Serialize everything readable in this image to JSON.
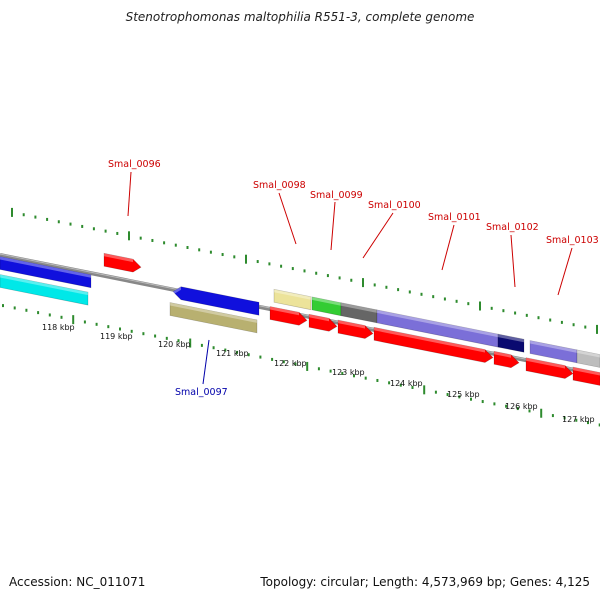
{
  "title": "Stenotrophomonas maltophilia R551-3, complete genome",
  "footer": {
    "accession": "Accession: NC_011071",
    "summary": "Topology: circular; Length: 4,573,969 bp; Genes: 4,125"
  },
  "colors": {
    "backbone": "#888888",
    "ticks": "#2e8b2e",
    "gene_label_top": "#cc0000",
    "gene_label_bottom": "#0000aa"
  },
  "scale_labels": [
    "118 kbp",
    "119 kbp",
    "120 kbp",
    "121 kbp",
    "122 kbp",
    "123 kbp",
    "124 kbp",
    "125 kbp",
    "126 kbp",
    "127 kbp"
  ],
  "gene_labels": [
    {
      "text": "Smal_0096",
      "color": "#cc0000"
    },
    {
      "text": "Smal_0097",
      "color": "#0000aa"
    },
    {
      "text": "Smal_0098",
      "color": "#cc0000"
    },
    {
      "text": "Smal_0099",
      "color": "#cc0000"
    },
    {
      "text": "Smal_0100",
      "color": "#cc0000"
    },
    {
      "text": "Smal_0101",
      "color": "#cc0000"
    },
    {
      "text": "Smal_0102",
      "color": "#cc0000"
    },
    {
      "text": "Smal_0103",
      "color": "#cc0000"
    }
  ],
  "feature_colors": {
    "cds": "#ff0000",
    "blue": "#1010dd",
    "cyan": "#00e8e8",
    "khaki": "#b8b070",
    "paleyellow": "#ece39a",
    "green": "#33cc33",
    "gray": "#666666",
    "slate": "#7b6fd8",
    "navy": "#0a0a70",
    "lightgray": "#bdbdbd"
  }
}
